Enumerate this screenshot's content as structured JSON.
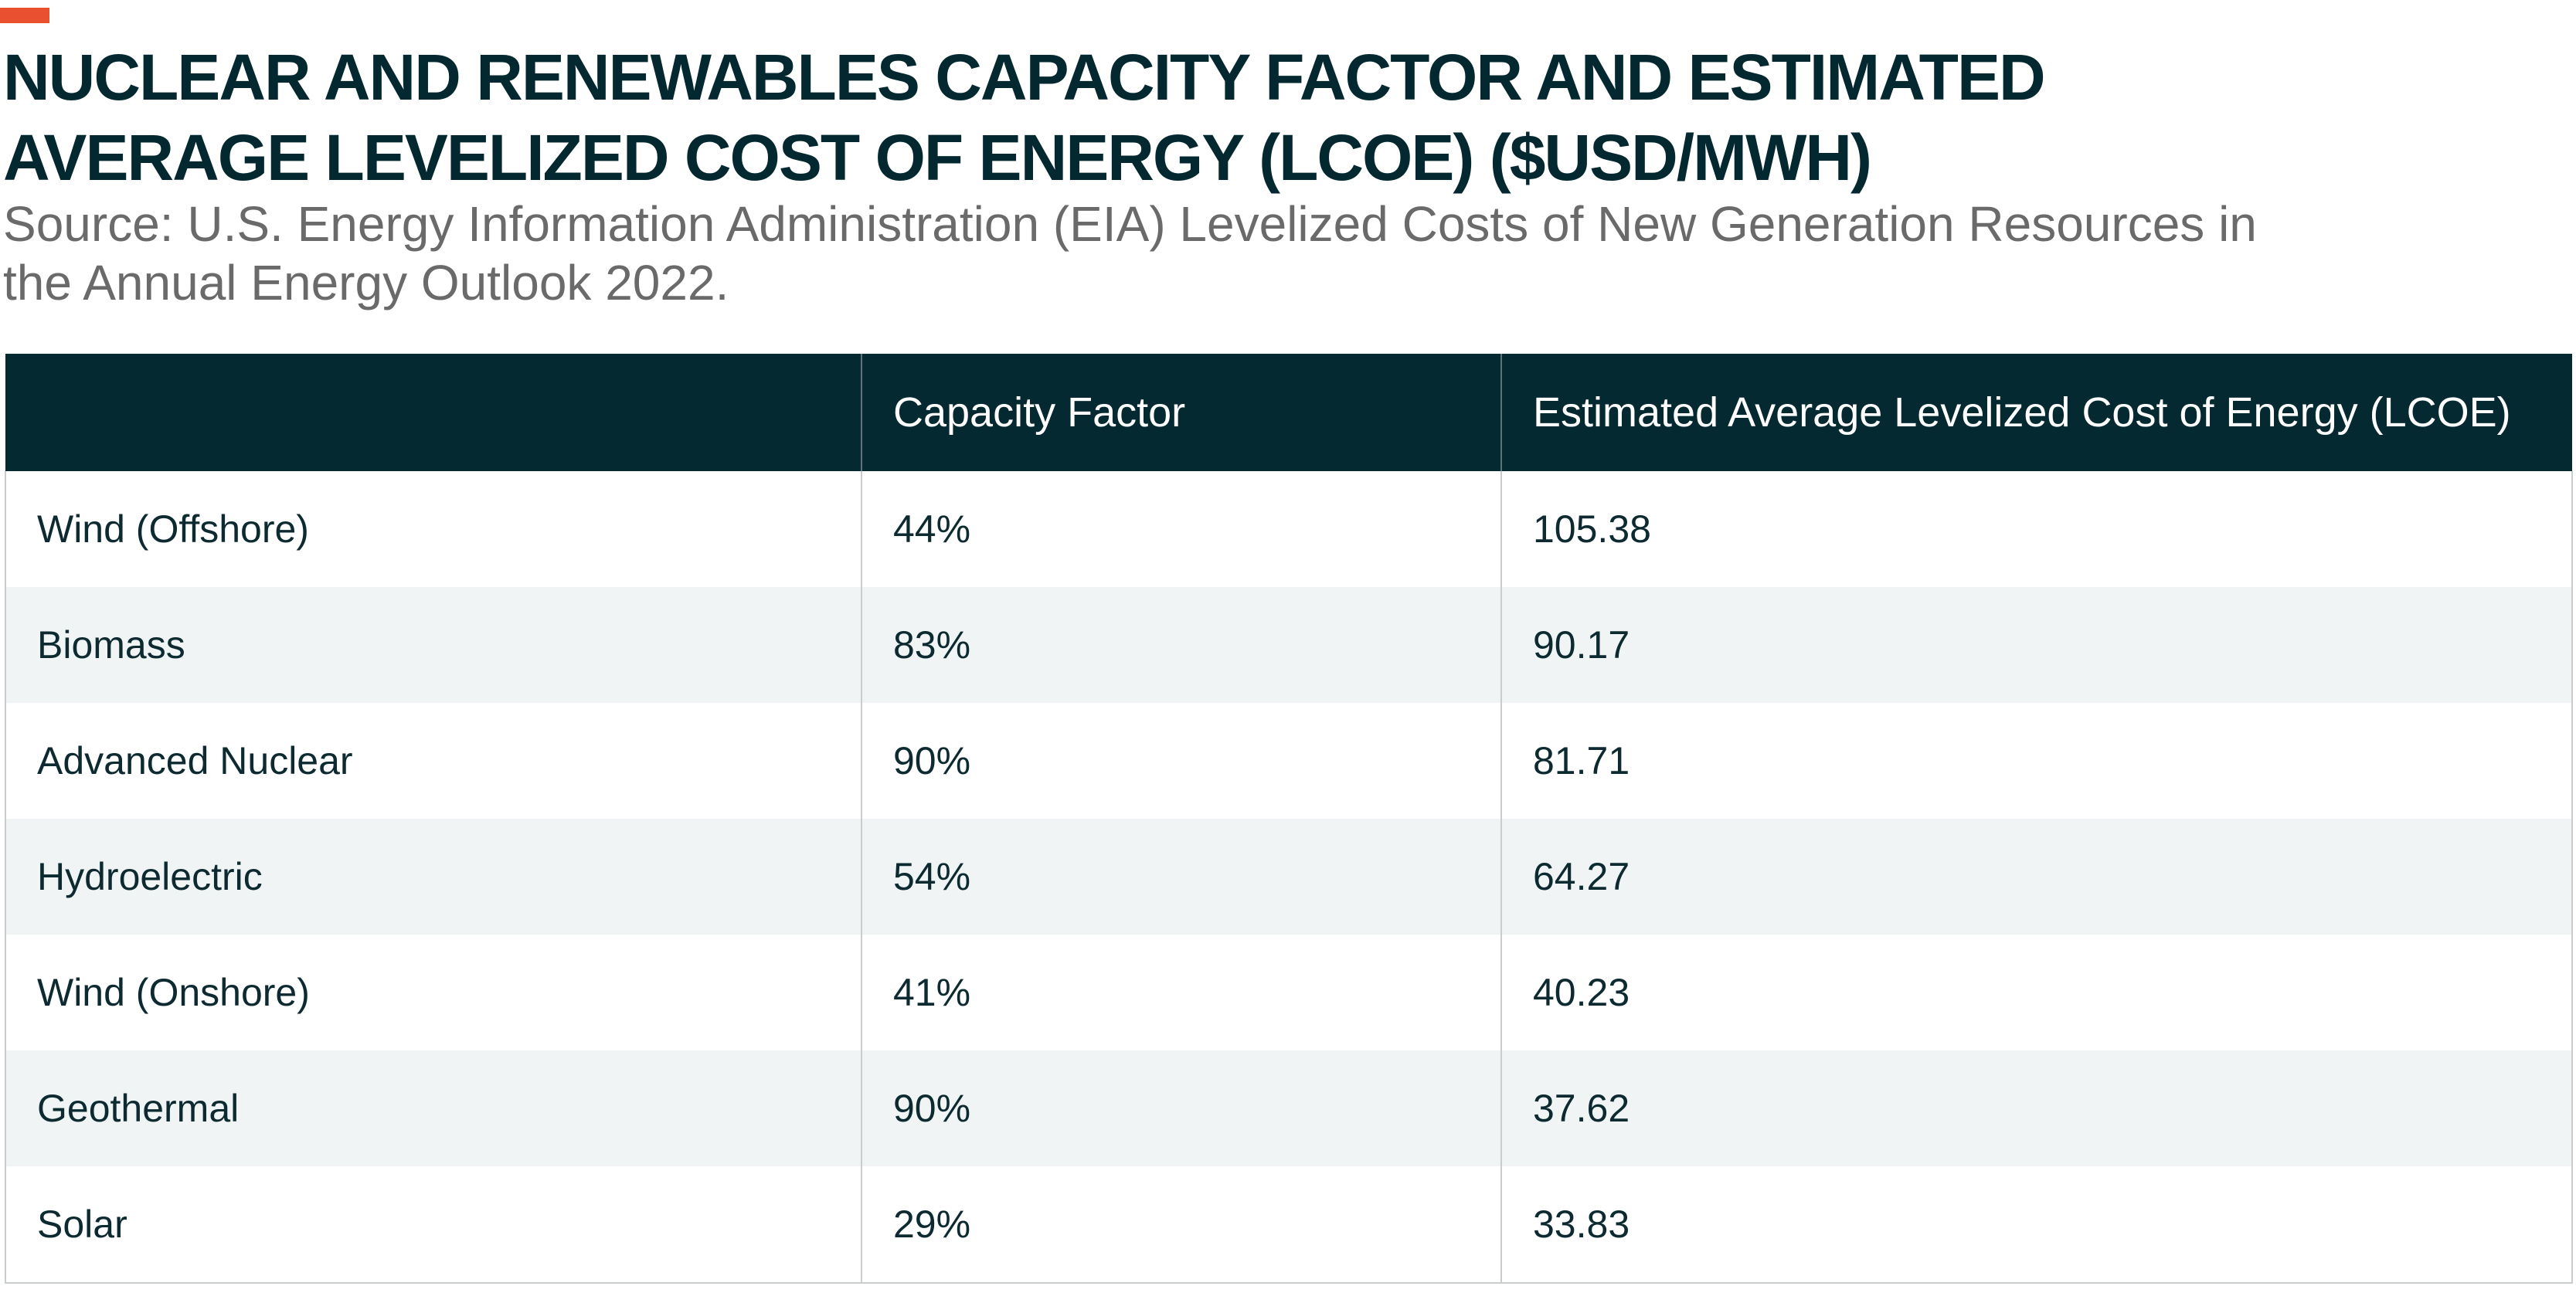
{
  "chart_data": {
    "type": "table",
    "title": "NUCLEAR AND RENEWABLES CAPACITY FACTOR AND ESTIMATED AVERAGE LEVELIZED COST OF ENERGY (LCOE) ($USD/MWH)",
    "subtitle": "Source: U.S. Energy Information Administration (EIA) Levelized Costs of New Generation Resources in the Annual Energy Outlook 2022.",
    "columns": [
      "",
      "Capacity Factor",
      "Estimated Average Levelized Cost of Energy (LCOE)"
    ],
    "rows": [
      {
        "source": "Wind (Offshore)",
        "capacity_factor": "44%",
        "lcoe": "105.38"
      },
      {
        "source": "Biomass",
        "capacity_factor": "83%",
        "lcoe": "90.17"
      },
      {
        "source": "Advanced Nuclear",
        "capacity_factor": "90%",
        "lcoe": "81.71"
      },
      {
        "source": "Hydroelectric",
        "capacity_factor": "54%",
        "lcoe": "64.27"
      },
      {
        "source": "Wind (Onshore)",
        "capacity_factor": "41%",
        "lcoe": "40.23"
      },
      {
        "source": "Geothermal",
        "capacity_factor": "90%",
        "lcoe": "37.62"
      },
      {
        "source": "Solar",
        "capacity_factor": "29%",
        "lcoe": "33.83"
      }
    ]
  },
  "colors": {
    "accent": "#e8502f",
    "header_bg": "#042930",
    "title": "#04282f",
    "subtitle": "#6a6a6a",
    "stripe": "#f1f4f4"
  }
}
